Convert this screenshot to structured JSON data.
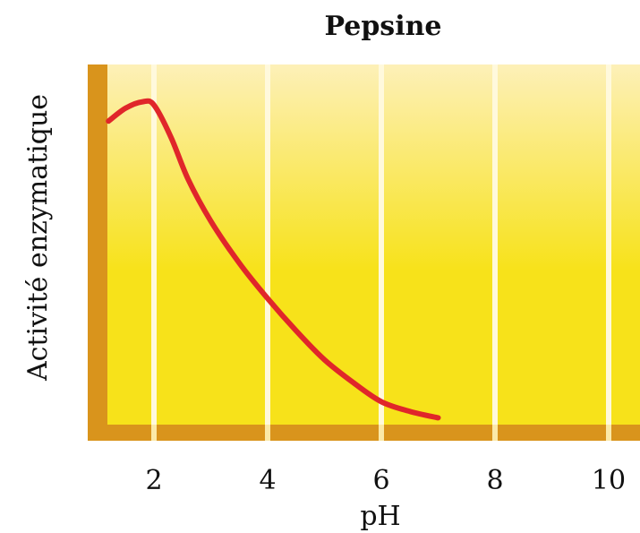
{
  "chart_data": {
    "type": "line",
    "title": "Pepsine",
    "xlabel": "pH",
    "ylabel": "Activité enzymatique",
    "xlim": [
      1,
      10.5
    ],
    "ylim": [
      0,
      1
    ],
    "xticks": [
      2,
      4,
      6,
      8,
      10
    ],
    "grid": true,
    "series": [
      {
        "x": [
          1.2,
          1.5,
          1.8,
          2.0,
          2.3,
          2.6,
          3.0,
          3.5,
          4.0,
          4.5,
          5.0,
          5.5,
          6.0,
          6.5,
          7.0
        ],
        "y": [
          0.93,
          0.97,
          0.99,
          0.98,
          0.88,
          0.75,
          0.62,
          0.49,
          0.38,
          0.28,
          0.19,
          0.12,
          0.06,
          0.03,
          0.01
        ]
      }
    ]
  },
  "colors": {
    "curve": "#e0262a",
    "axis": "#d9941c",
    "panel_top": "#fdf0b8",
    "panel_bottom": "#f7e21a",
    "grid": "#fff9dc"
  }
}
